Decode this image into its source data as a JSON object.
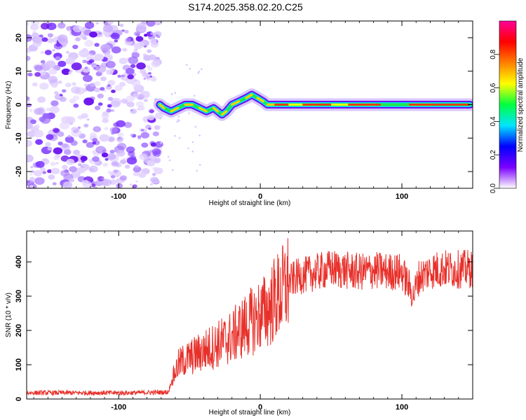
{
  "title": "S174.2025.358.02.20.C25",
  "chart_data": [
    {
      "type": "heatmap",
      "name": "spectrogram",
      "xlabel": "Height of straight line (km)",
      "ylabel": "Frequency (Hz)",
      "xlim": [
        -165,
        150
      ],
      "ylim": [
        -25,
        25
      ],
      "xticks": [
        -100,
        0,
        100
      ],
      "yticks": [
        -20,
        -10,
        0,
        10,
        20
      ],
      "noise_region_x": [
        -165,
        -71
      ],
      "signal_track": {
        "x": [
          -71,
          -68,
          -63,
          -58,
          -53,
          -48,
          -43,
          -38,
          -33,
          -30,
          -27,
          -24,
          -20,
          -15,
          -10,
          -6,
          -2,
          2,
          5,
          10,
          20,
          40,
          60,
          80,
          100,
          120,
          148
        ],
        "freq": [
          0,
          -1,
          -2,
          -1,
          0,
          0,
          -1,
          -2,
          -1,
          -2,
          -3,
          -2,
          0,
          1,
          2,
          3,
          2,
          1,
          0,
          0,
          0,
          0,
          0,
          0,
          0,
          0,
          0
        ]
      },
      "colorbar": {
        "label": "Normalized spectral amplitude",
        "range": [
          0.0,
          1.0
        ],
        "ticks": [
          "0.0",
          "0.2",
          "0.4",
          "0.6",
          "0.8"
        ],
        "colors": [
          "#ffffff",
          "#7b00ff",
          "#0000ff",
          "#00e5ff",
          "#00ff40",
          "#ffff00",
          "#ff8000",
          "#ff0000",
          "#ff0099"
        ]
      }
    },
    {
      "type": "line",
      "name": "snr",
      "xlabel": "Height of straight line (km)",
      "ylabel": "SNR (10 * v/v)",
      "xlim": [
        -165,
        150
      ],
      "ylim": [
        0,
        490
      ],
      "xticks": [
        -100,
        0,
        100
      ],
      "yticks": [
        0,
        100,
        200,
        300,
        400
      ],
      "line_color": "#e8302a",
      "series": [
        {
          "name": "SNR",
          "x": [
            -165,
            -140,
            -115,
            -90,
            -65,
            -62,
            -58,
            -55,
            -50,
            -45,
            -40,
            -35,
            -30,
            -25,
            -20,
            -15,
            -10,
            -5,
            0,
            5,
            10,
            15,
            20,
            25,
            30,
            40,
            50,
            60,
            70,
            80,
            90,
            100,
            105,
            108,
            112,
            120,
            130,
            140,
            150
          ],
          "y": [
            18,
            18,
            18,
            18,
            20,
            60,
            100,
            110,
            120,
            130,
            140,
            150,
            160,
            170,
            180,
            200,
            215,
            230,
            245,
            260,
            290,
            310,
            340,
            355,
            360,
            370,
            380,
            375,
            370,
            375,
            372,
            370,
            330,
            300,
            355,
            375,
            380,
            378,
            380
          ]
        }
      ]
    }
  ]
}
